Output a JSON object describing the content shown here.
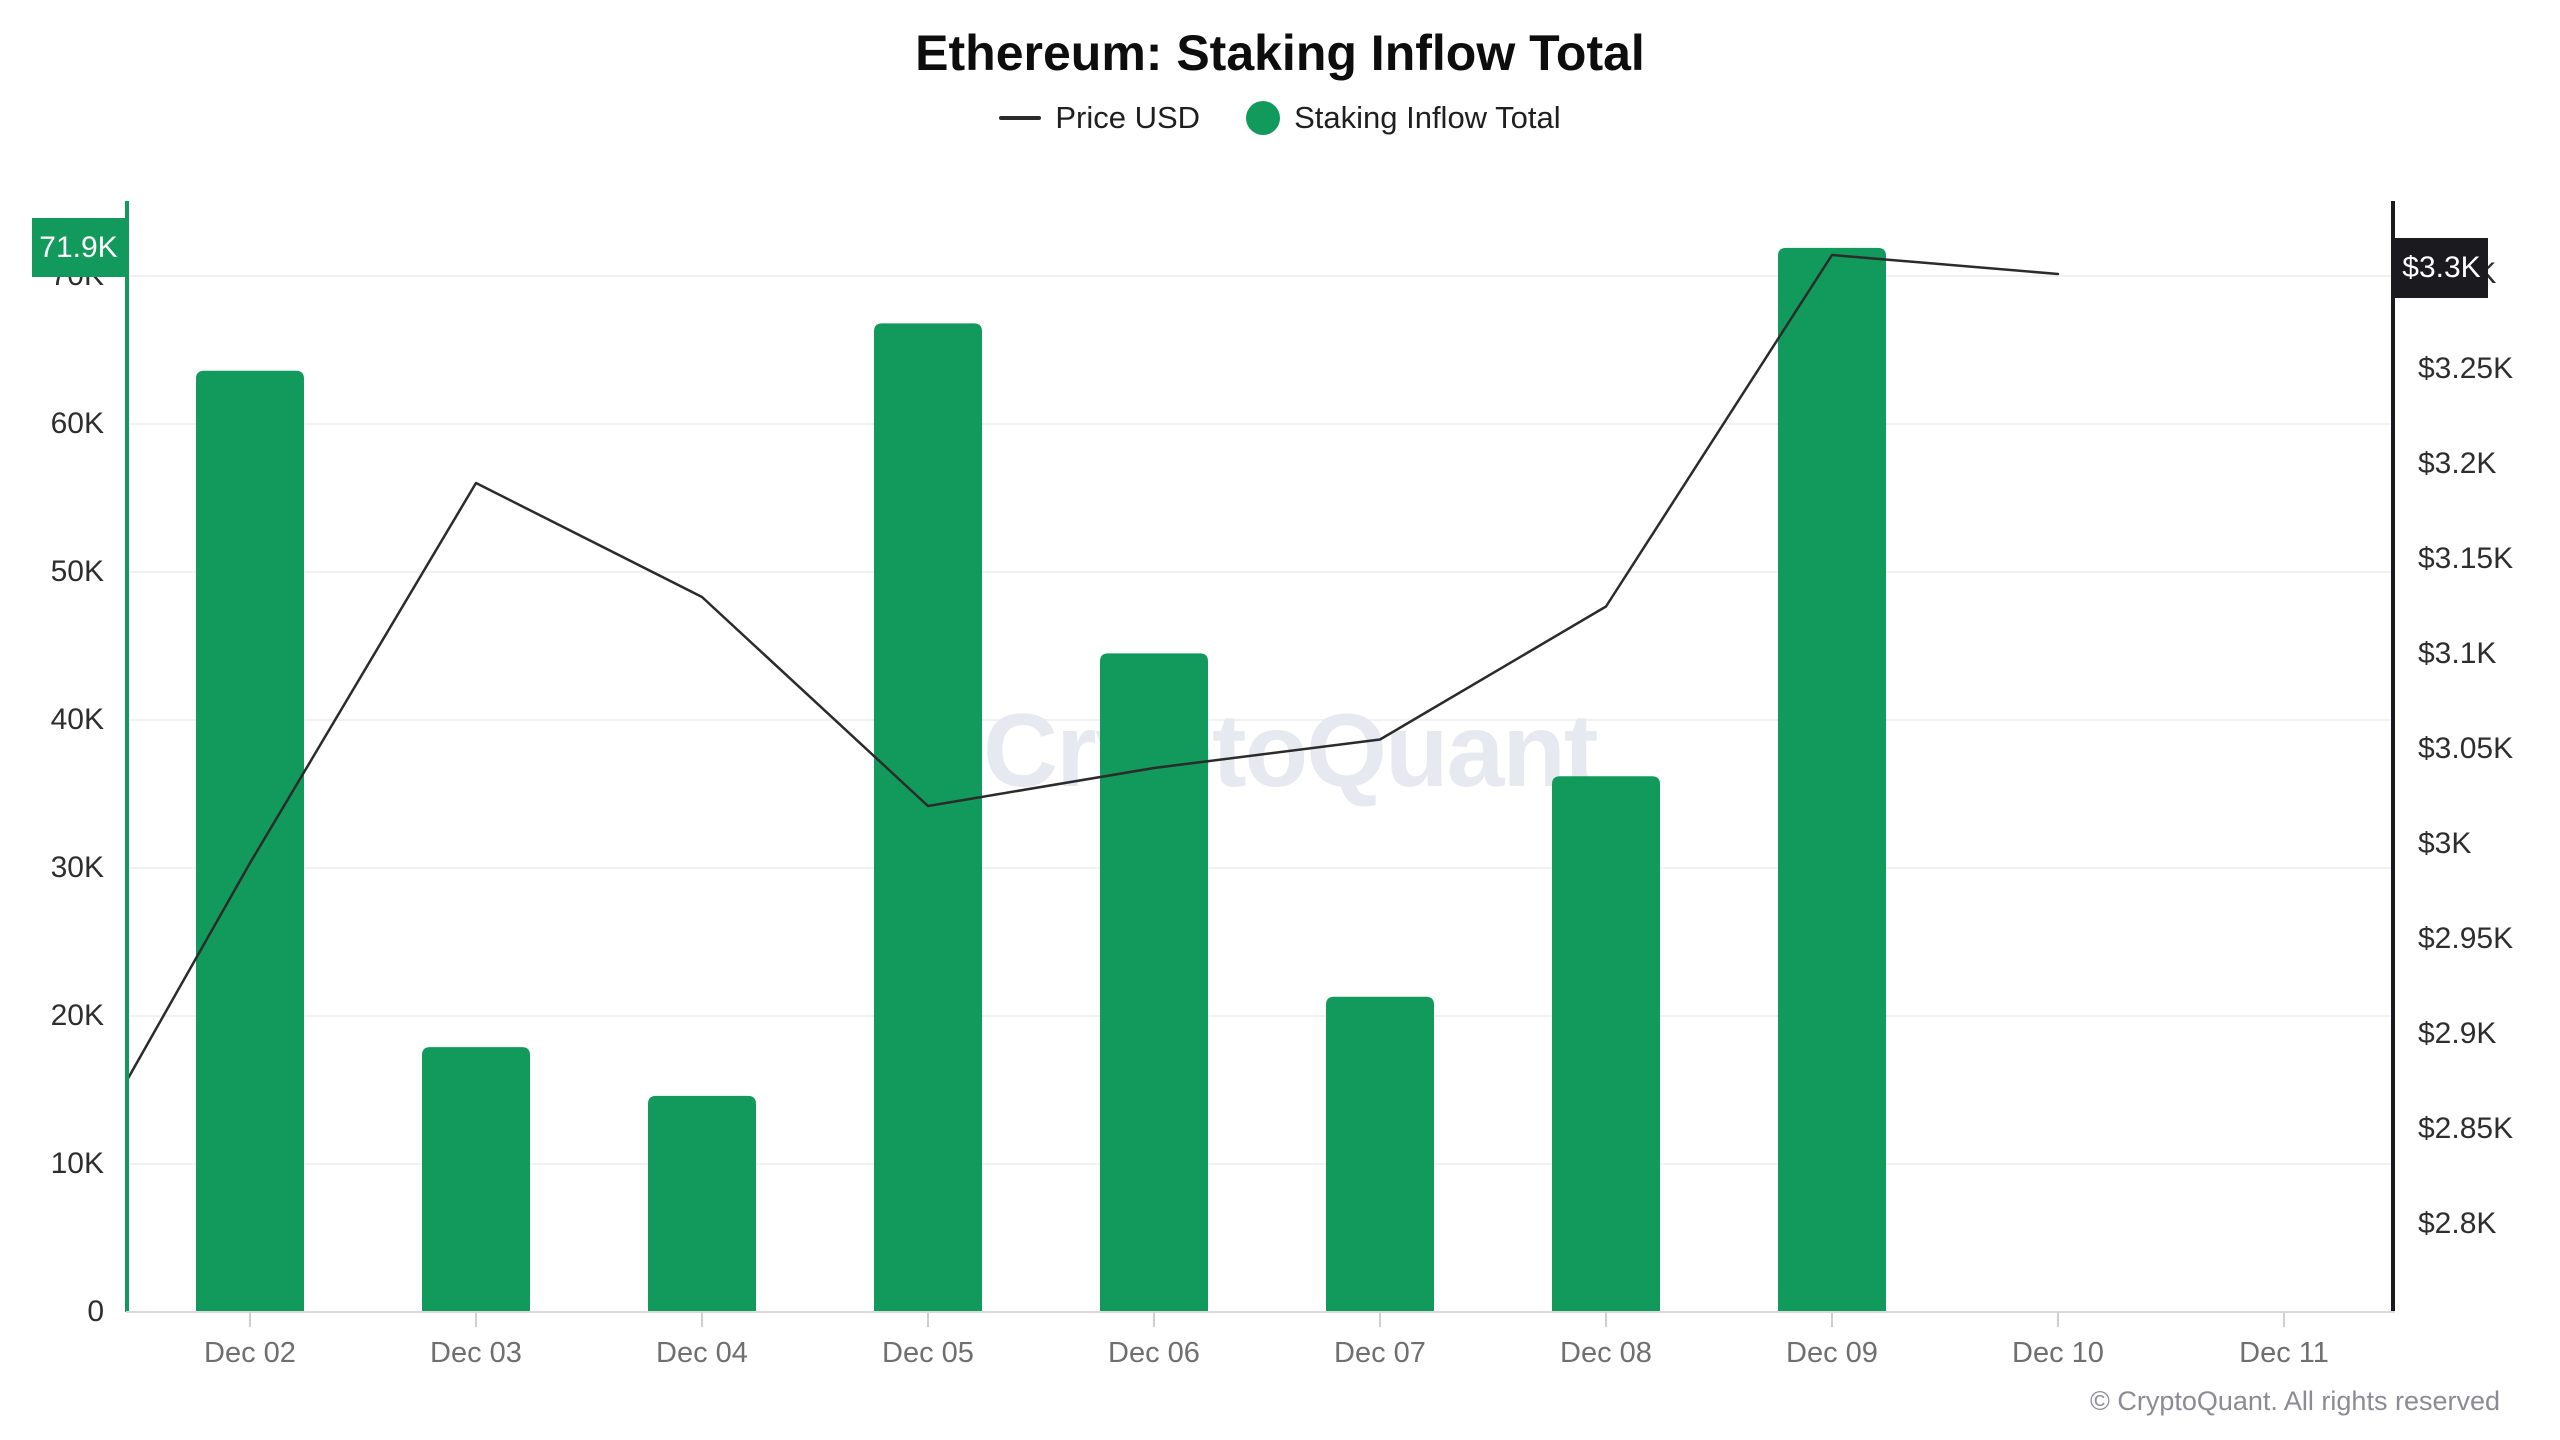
{
  "title": "Ethereum: Staking Inflow Total",
  "legend": {
    "items": [
      {
        "label": "Price USD",
        "marker": "line"
      },
      {
        "label": "Staking Inflow Total",
        "marker": "dot"
      }
    ]
  },
  "watermark": "CryptoQuant",
  "copyright": "© CryptoQuant. All rights reserved",
  "badges": {
    "left_value": "71.9K",
    "right_value": "$3.3K"
  },
  "colors": {
    "green": "#129a5c",
    "price_line": "#2b2b2b",
    "badge_dark": "#1b1b1f",
    "grid": "#f1f1f2",
    "axis_baseline": "#d9d9dd",
    "x_tick": "#cfcfcf",
    "label_dark": "#2e2e2e",
    "label_gray": "#6f6f6f",
    "watermark": "#e7e9f0",
    "copyright": "#8b8b93"
  },
  "chart_data": {
    "type": "bar",
    "title": "Ethereum: Staking Inflow Total",
    "categories": [
      "Dec 02",
      "Dec 03",
      "Dec 04",
      "Dec 05",
      "Dec 06",
      "Dec 07",
      "Dec 08",
      "Dec 09",
      "Dec 10",
      "Dec 11"
    ],
    "series": [
      {
        "name": "Staking Inflow Total",
        "kind": "bar",
        "axis": "left",
        "color": "#129a5c",
        "values": [
          63600,
          17900,
          14600,
          66800,
          44500,
          21300,
          36200,
          71900,
          null,
          null
        ]
      },
      {
        "name": "Price USD",
        "kind": "line",
        "axis": "right",
        "color": "#2b2b2b",
        "values": [
          2990,
          3190,
          3130,
          3020,
          3040,
          3055,
          3125,
          3310,
          3300,
          null
        ],
        "lead_in": {
          "label": "Dec 01",
          "value": 2780
        }
      }
    ],
    "left_axis": {
      "ticks": [
        0,
        10000,
        20000,
        30000,
        40000,
        50000,
        60000,
        70000
      ],
      "tick_labels": [
        "0",
        "10K",
        "20K",
        "30K",
        "40K",
        "50K",
        "60K",
        "70K"
      ],
      "range": [
        0,
        75200
      ],
      "latest_badge": "71.9K"
    },
    "right_axis": {
      "ticks": [
        2800,
        2850,
        2900,
        2950,
        3000,
        3050,
        3100,
        3150,
        3200,
        3250,
        3300
      ],
      "tick_labels": [
        "$2.8K",
        "$2.85K",
        "$2.9K",
        "$2.95K",
        "$3K",
        "$3.05K",
        "$3.1K",
        "$3.15K",
        "$3.2K",
        "$3.25K",
        "$3.3K"
      ],
      "range": [
        2760,
        3340
      ],
      "latest_badge": "$3.3K"
    },
    "x_axis": {
      "tick_labels": [
        "Dec 02",
        "Dec 03",
        "Dec 04",
        "Dec 05",
        "Dec 06",
        "Dec 07",
        "Dec 08",
        "Dec 09",
        "Dec 10",
        "Dec 11"
      ]
    },
    "grid": "horizontal",
    "legend_position": "top"
  }
}
